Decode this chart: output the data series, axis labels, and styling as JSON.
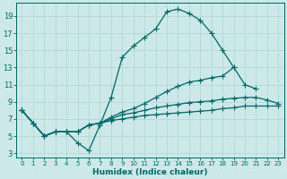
{
  "xlabel": "Humidex (Indice chaleur)",
  "bg_color": "#cce8e8",
  "grid_color": "#b0d8d8",
  "line_color": "#006868",
  "xlim": [
    -0.5,
    23.5
  ],
  "ylim": [
    2.5,
    20.5
  ],
  "xticks": [
    0,
    1,
    2,
    3,
    4,
    5,
    6,
    7,
    8,
    9,
    10,
    11,
    12,
    13,
    14,
    15,
    16,
    17,
    18,
    19,
    20,
    21,
    22,
    23
  ],
  "yticks": [
    3,
    5,
    7,
    9,
    11,
    13,
    15,
    17,
    19
  ],
  "line1_y": [
    8.0,
    6.5,
    5.0,
    5.5,
    5.5,
    4.2,
    3.3,
    6.3,
    9.5,
    14.2,
    15.5,
    16.5,
    17.5,
    19.5,
    19.8,
    19.3,
    18.5,
    17.0,
    15.0,
    13.0,
    null,
    null,
    null,
    null
  ],
  "line2_y": [
    8.0,
    6.5,
    5.0,
    5.5,
    5.5,
    5.5,
    6.3,
    6.5,
    7.2,
    7.8,
    8.2,
    8.8,
    9.5,
    10.2,
    10.8,
    11.3,
    11.5,
    11.8,
    12.0,
    13.0,
    11.0,
    10.5,
    null,
    null
  ],
  "line3_y": [
    8.0,
    6.5,
    5.0,
    5.5,
    5.5,
    5.5,
    6.3,
    6.5,
    7.0,
    7.5,
    7.7,
    8.0,
    8.3,
    8.5,
    8.7,
    8.9,
    9.0,
    9.1,
    9.3,
    9.4,
    9.5,
    9.5,
    9.2,
    8.8
  ],
  "line4_y": [
    8.0,
    6.5,
    5.0,
    5.5,
    5.5,
    5.5,
    6.3,
    6.5,
    6.8,
    7.0,
    7.2,
    7.4,
    7.5,
    7.6,
    7.7,
    7.8,
    7.9,
    8.0,
    8.2,
    8.3,
    8.5,
    8.5,
    8.5,
    8.5
  ],
  "marker_size": 2.0,
  "line_width": 0.9,
  "tick_fontsize_x": 5.0,
  "tick_fontsize_y": 6.0,
  "xlabel_fontsize": 6.5
}
